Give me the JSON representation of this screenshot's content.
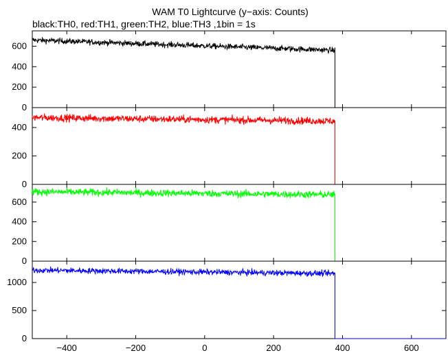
{
  "chart_data": {
    "type": "line",
    "title": "WAM T0 Lightcurve (y−axis: Counts)",
    "subtitle": "black:TH0, red:TH1, green:TH2, blue:TH3 ,1bin = 1s",
    "xlim": [
      -500,
      700
    ],
    "x_ticks": [
      -400,
      -200,
      0,
      200,
      400,
      600
    ],
    "x_tick_labels": [
      "−400",
      "−200",
      "0",
      "200",
      "400",
      "600"
    ],
    "cutoff_x": 378,
    "panels": [
      {
        "name": "TH0",
        "color": "#000000",
        "ylim": [
          0,
          750
        ],
        "y_ticks": [
          0,
          200,
          400,
          600
        ],
        "start_level": 660,
        "end_level": 560,
        "noise": 26
      },
      {
        "name": "TH1",
        "color": "#ff0000",
        "ylim": [
          0,
          540
        ],
        "y_ticks": [
          0,
          200,
          400
        ],
        "start_level": 470,
        "end_level": 445,
        "noise": 24
      },
      {
        "name": "TH2",
        "color": "#00ff00",
        "ylim": [
          0,
          780
        ],
        "y_ticks": [
          0,
          200,
          400,
          600
        ],
        "start_level": 705,
        "end_level": 675,
        "noise": 34
      },
      {
        "name": "TH3",
        "color": "#0000ff",
        "ylim": [
          0,
          1380
        ],
        "y_ticks": [
          0,
          500,
          1000
        ],
        "start_level": 1220,
        "end_level": 1160,
        "noise": 48
      }
    ]
  }
}
